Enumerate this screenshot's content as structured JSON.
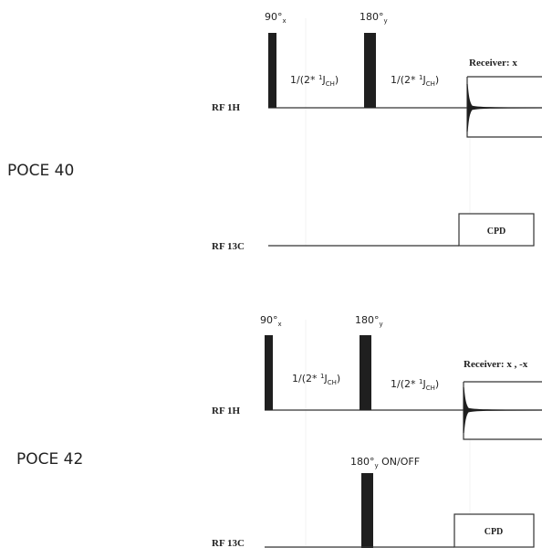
{
  "sequences": [
    {
      "name": "POCE 40",
      "h_channel": {
        "label": "RF 1H",
        "pulse1": "90°",
        "pulse1_sub": "x",
        "pulse2": "180°",
        "pulse2_sub": "y",
        "delay1": {
          "prefix": "1/(2* ",
          "sup": "1",
          "mid": "J",
          "sub": "CH",
          "suffix": ")"
        },
        "delay2": {
          "prefix": "1/(2* ",
          "sup": "1",
          "mid": "J",
          "sub": "CH",
          "suffix": ")"
        },
        "receiver": "Receiver: x"
      },
      "c_channel": {
        "label": "RF 13C",
        "decoupling": "CPD"
      }
    },
    {
      "name": "POCE 42",
      "h_channel": {
        "label": "RF 1H",
        "pulse1": "90°",
        "pulse1_sub": "x",
        "pulse2": "180°",
        "pulse2_sub": "y",
        "delay1": {
          "prefix": "1/(2* ",
          "sup": "1",
          "mid": "J",
          "sub": "CH",
          "suffix": ")"
        },
        "delay2": {
          "prefix": "1/(2* ",
          "sup": "1",
          "mid": "J",
          "sub": "CH",
          "suffix": ")"
        },
        "receiver": "Receiver: x , -x"
      },
      "c_channel": {
        "label": "RF 13C",
        "pulse": "180°",
        "pulse_sub": "y",
        "pulse_suffix": " ON/OFF",
        "decoupling": "CPD"
      }
    }
  ]
}
